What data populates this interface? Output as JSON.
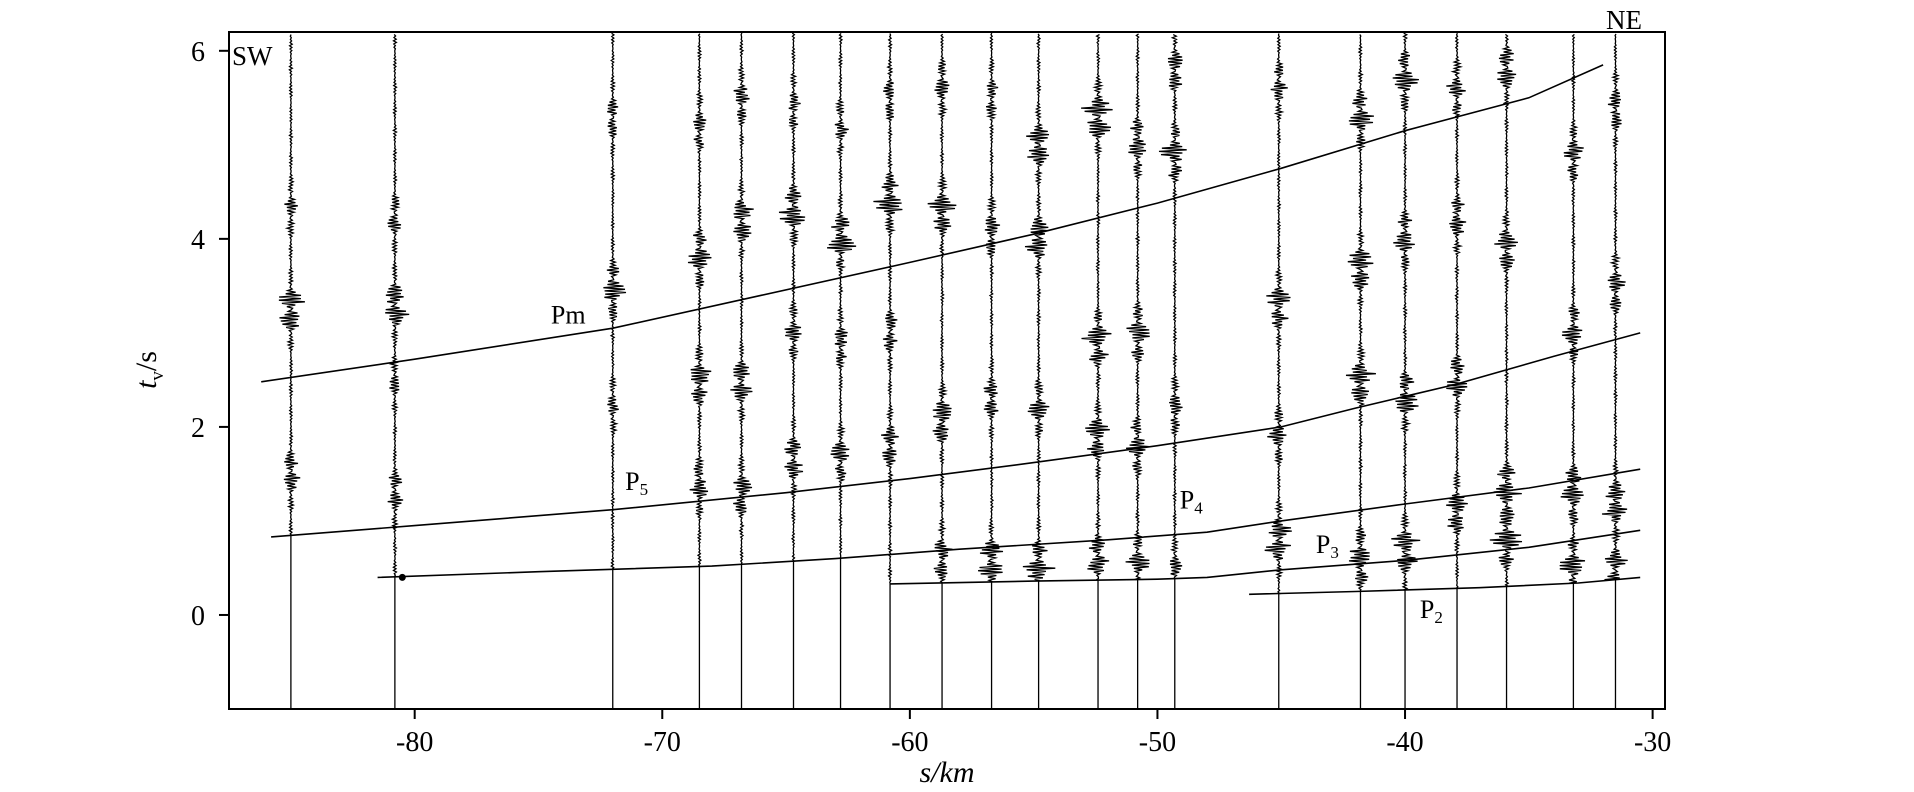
{
  "chart_data": {
    "type": "seismic-record-section",
    "xlabel": "s/km",
    "ylabel": "t /s",
    "ylabel_main": "t",
    "ylabel_sub": "v",
    "ylabel_unit": "/s",
    "xlim": [
      -87.5,
      -29.5
    ],
    "ylim": [
      -1.0,
      6.2
    ],
    "x_ticks": [
      -80,
      -70,
      -60,
      -50,
      -40,
      -30
    ],
    "y_ticks": [
      0,
      2,
      4,
      6
    ],
    "x_tick_labels": [
      "-80",
      "-70",
      "-60",
      "-50",
      "-40",
      "-30"
    ],
    "y_tick_labels": [
      "0",
      "2",
      "4",
      "6"
    ],
    "grid": false,
    "corner_labels": {
      "left": "SW",
      "right": "NE"
    },
    "stations": [
      {
        "x": -85.0,
        "bursts": [
          [
            3.25,
            1.0
          ],
          [
            1.5,
            0.6
          ],
          [
            4.3,
            0.35
          ]
        ]
      },
      {
        "x": -80.8,
        "bursts": [
          [
            3.3,
            1.0
          ],
          [
            1.3,
            0.6
          ],
          [
            4.2,
            0.4
          ],
          [
            2.5,
            0.3
          ]
        ]
      },
      {
        "x": -72.0,
        "bursts": [
          [
            3.45,
            0.9
          ],
          [
            5.3,
            0.4
          ],
          [
            2.2,
            0.35
          ]
        ]
      },
      {
        "x": -68.5,
        "bursts": [
          [
            3.8,
            0.9
          ],
          [
            2.5,
            0.8
          ],
          [
            1.4,
            0.7
          ],
          [
            5.2,
            0.5
          ]
        ]
      },
      {
        "x": -66.8,
        "bursts": [
          [
            4.2,
            0.9
          ],
          [
            2.45,
            0.8
          ],
          [
            1.3,
            0.7
          ],
          [
            5.5,
            0.5
          ]
        ]
      },
      {
        "x": -64.7,
        "bursts": [
          [
            4.3,
            1.0
          ],
          [
            1.65,
            0.7
          ],
          [
            3.0,
            0.5
          ],
          [
            5.4,
            0.4
          ]
        ]
      },
      {
        "x": -62.8,
        "bursts": [
          [
            4.0,
            1.0
          ],
          [
            1.7,
            0.6
          ],
          [
            2.9,
            0.5
          ],
          [
            5.2,
            0.4
          ]
        ]
      },
      {
        "x": -60.8,
        "bursts": [
          [
            4.4,
            1.0
          ],
          [
            1.8,
            0.6
          ],
          [
            3.0,
            0.5
          ],
          [
            5.5,
            0.4
          ]
        ]
      },
      {
        "x": -58.7,
        "bursts": [
          [
            4.3,
            0.9
          ],
          [
            2.1,
            0.8
          ],
          [
            0.6,
            0.7
          ],
          [
            5.6,
            0.5
          ]
        ]
      },
      {
        "x": -56.7,
        "bursts": [
          [
            0.55,
            1.0
          ],
          [
            4.1,
            0.6
          ],
          [
            2.3,
            0.5
          ],
          [
            5.5,
            0.4
          ]
        ]
      },
      {
        "x": -54.8,
        "bursts": [
          [
            5.0,
            0.9
          ],
          [
            4.0,
            0.9
          ],
          [
            0.5,
            1.0
          ],
          [
            2.2,
            0.6
          ]
        ]
      },
      {
        "x": -52.4,
        "bursts": [
          [
            5.3,
            1.2
          ],
          [
            2.9,
            1.0
          ],
          [
            1.9,
            0.9
          ],
          [
            0.6,
            0.8
          ]
        ]
      },
      {
        "x": -50.8,
        "bursts": [
          [
            5.0,
            0.9
          ],
          [
            3.0,
            0.8
          ],
          [
            1.8,
            0.8
          ],
          [
            0.55,
            0.7
          ]
        ]
      },
      {
        "x": -49.3,
        "bursts": [
          [
            4.9,
            0.9
          ],
          [
            5.8,
            0.6
          ],
          [
            2.2,
            0.5
          ],
          [
            0.5,
            0.5
          ]
        ]
      },
      {
        "x": -45.1,
        "bursts": [
          [
            0.8,
            1.0
          ],
          [
            3.3,
            0.8
          ],
          [
            1.9,
            0.6
          ],
          [
            5.6,
            0.5
          ]
        ]
      },
      {
        "x": -41.8,
        "bursts": [
          [
            0.6,
            1.0
          ],
          [
            2.5,
            1.0
          ],
          [
            3.7,
            0.9
          ],
          [
            5.3,
            0.9
          ]
        ]
      },
      {
        "x": -40.0,
        "bursts": [
          [
            0.7,
            1.0
          ],
          [
            2.3,
            0.9
          ],
          [
            4.0,
            0.8
          ],
          [
            5.7,
            0.8
          ]
        ]
      },
      {
        "x": -37.9,
        "bursts": [
          [
            1.1,
            0.8
          ],
          [
            2.5,
            0.7
          ],
          [
            4.2,
            0.7
          ],
          [
            5.6,
            0.6
          ]
        ]
      },
      {
        "x": -35.9,
        "bursts": [
          [
            0.8,
            1.0
          ],
          [
            1.35,
            0.9
          ],
          [
            3.9,
            0.8
          ],
          [
            5.8,
            0.7
          ]
        ]
      },
      {
        "x": -33.2,
        "bursts": [
          [
            1.3,
            1.0
          ],
          [
            0.5,
            0.9
          ],
          [
            3.0,
            0.8
          ],
          [
            4.9,
            0.7
          ]
        ]
      },
      {
        "x": -31.5,
        "bursts": [
          [
            1.2,
            1.0
          ],
          [
            0.5,
            0.8
          ],
          [
            3.5,
            0.7
          ],
          [
            5.4,
            0.6
          ]
        ]
      }
    ],
    "phases": [
      {
        "name": "Pm",
        "label": "Pm",
        "label_at": [
          -74.5,
          3.1
        ],
        "points": [
          [
            -86.2,
            2.48
          ],
          [
            -80,
            2.72
          ],
          [
            -72,
            3.05
          ],
          [
            -66,
            3.4
          ],
          [
            -60,
            3.75
          ],
          [
            -55,
            4.05
          ],
          [
            -50,
            4.38
          ],
          [
            -45,
            4.75
          ],
          [
            -40,
            5.15
          ],
          [
            -35,
            5.5
          ],
          [
            -32,
            5.85
          ]
        ]
      },
      {
        "name": "P5",
        "label": "P",
        "label_sub": "5",
        "label_at": [
          -71.5,
          1.33
        ],
        "points": [
          [
            -85.8,
            0.83
          ],
          [
            -80,
            0.95
          ],
          [
            -72,
            1.12
          ],
          [
            -65,
            1.3
          ],
          [
            -60,
            1.45
          ],
          [
            -55,
            1.62
          ],
          [
            -50,
            1.8
          ],
          [
            -45,
            2.0
          ],
          [
            -42,
            2.2
          ],
          [
            -38,
            2.45
          ],
          [
            -34,
            2.75
          ],
          [
            -30.5,
            3.0
          ]
        ]
      },
      {
        "name": "P4",
        "label": "P",
        "label_sub": "4",
        "label_at": [
          -49.1,
          1.13
        ],
        "points": [
          [
            -81.5,
            0.4
          ],
          [
            -75,
            0.46
          ],
          [
            -68,
            0.52
          ],
          [
            -63,
            0.6
          ],
          [
            -58,
            0.7
          ],
          [
            -52,
            0.8
          ],
          [
            -48,
            0.88
          ],
          [
            -45,
            1.0
          ],
          [
            -40,
            1.18
          ],
          [
            -35,
            1.35
          ],
          [
            -30.5,
            1.55
          ]
        ]
      },
      {
        "name": "P3",
        "label": "P",
        "label_sub": "3",
        "label_at": [
          -43.6,
          0.66
        ],
        "points": [
          [
            -60.8,
            0.33
          ],
          [
            -55,
            0.36
          ],
          [
            -50,
            0.38
          ],
          [
            -48,
            0.4
          ],
          [
            -45,
            0.48
          ],
          [
            -40,
            0.58
          ],
          [
            -35,
            0.72
          ],
          [
            -30.5,
            0.9
          ]
        ]
      },
      {
        "name": "P2",
        "label": "P",
        "label_sub": "2",
        "label_at": [
          -39.4,
          -0.03
        ],
        "points": [
          [
            -46.3,
            0.22
          ],
          [
            -42,
            0.25
          ],
          [
            -37,
            0.29
          ],
          [
            -33,
            0.34
          ],
          [
            -30.5,
            0.4
          ]
        ]
      }
    ]
  }
}
